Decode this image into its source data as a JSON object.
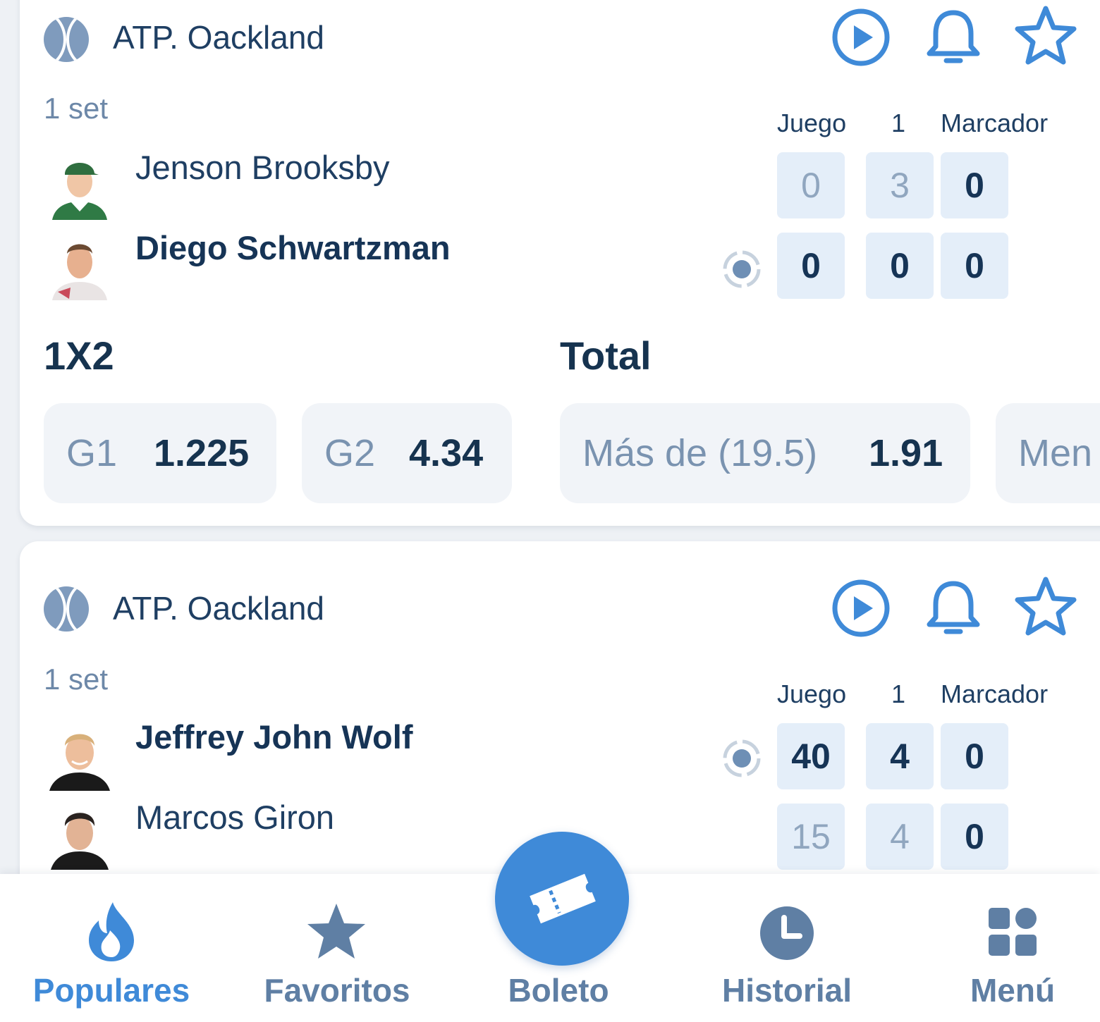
{
  "matches": [
    {
      "league": "ATP. Oackland",
      "set_label": "1 set",
      "columns": {
        "game": "Juego",
        "set1": "1",
        "score": "Marcador"
      },
      "players": [
        {
          "name": "Jenson Brooksby",
          "game": "0",
          "set1": "3",
          "score": "0"
        },
        {
          "name": "Diego Schwartzman",
          "game": "0",
          "set1": "0",
          "score": "0"
        }
      ],
      "markets": {
        "m1_title": "1X2",
        "m2_title": "Total",
        "odds": [
          {
            "label": "G1",
            "value": "1.225"
          },
          {
            "label": "G2",
            "value": "4.34"
          },
          {
            "label": "Más de (19.5)",
            "value": "1.91"
          },
          {
            "label": "Men",
            "value": ""
          }
        ]
      }
    },
    {
      "league": "ATP. Oackland",
      "set_label": "1 set",
      "columns": {
        "game": "Juego",
        "set1": "1",
        "score": "Marcador"
      },
      "players": [
        {
          "name": "Jeffrey John Wolf",
          "game": "40",
          "set1": "4",
          "score": "0"
        },
        {
          "name": "Marcos Giron",
          "game": "15",
          "set1": "4",
          "score": "0"
        }
      ]
    }
  ],
  "nav": {
    "populares": "Populares",
    "favoritos": "Favoritos",
    "boleto": "Boleto",
    "historial": "Historial",
    "menu": "Menú"
  },
  "icons": {
    "sport": "tennis-ball-icon",
    "play": "play-circle-icon",
    "bell": "bell-icon",
    "star": "star-outline-icon",
    "serve": "serve-indicator-icon"
  },
  "colors": {
    "accent": "#3f8ad8",
    "text": "#1b3a5c",
    "score_bg": "#e4eef9"
  }
}
